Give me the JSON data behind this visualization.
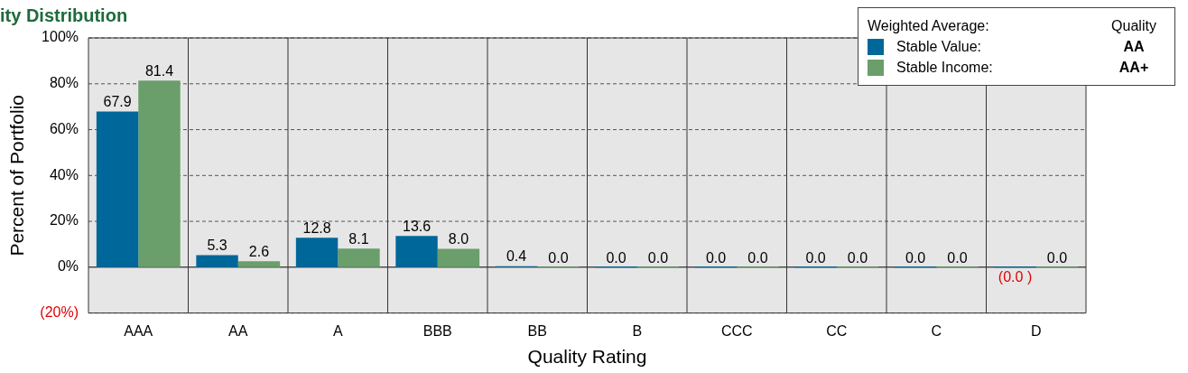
{
  "chart_data": {
    "type": "bar",
    "title": "ity Distribution",
    "xlabel": "Quality Rating",
    "ylabel": "Percent of Portfolio",
    "legend_title": "Weighted Average:",
    "categories": [
      "AAA",
      "AA",
      "A",
      "BBB",
      "BB",
      "B",
      "CCC",
      "CC",
      "C",
      "D"
    ],
    "series": [
      {
        "name": "Stable Value:",
        "color": "#00679a",
        "values": [
          67.9,
          5.3,
          12.8,
          13.6,
          0.4,
          0,
          0,
          0,
          0,
          0
        ],
        "value_labels": [
          "67.9",
          "5.3",
          "12.8",
          "13.6",
          "0.4",
          "0.0",
          "0.0",
          "0.0",
          "0.0",
          "(0.0 )"
        ]
      },
      {
        "name": "Stable Income:",
        "color": "#6a9e6a",
        "values": [
          81.4,
          2.6,
          8.1,
          8.0,
          0,
          0,
          0,
          0,
          0,
          0
        ],
        "value_labels": [
          "81.4",
          "2.6",
          "8.1",
          "8.0",
          "0.0",
          "0.0",
          "0.0",
          "0.0",
          "0.0",
          "0.0"
        ]
      }
    ],
    "ylim": [
      -20,
      100
    ],
    "yticks": [
      {
        "value": -20,
        "label": "(20%)"
      },
      {
        "value": 0,
        "label": "0%"
      },
      {
        "value": 20,
        "label": "20%"
      },
      {
        "value": 40,
        "label": "40%"
      },
      {
        "value": 60,
        "label": "60%"
      },
      {
        "value": 80,
        "label": "80%"
      },
      {
        "value": 100,
        "label": "100%"
      }
    ],
    "grid": true,
    "legend": "top right",
    "annotations": [
      "Quality",
      "AA",
      "AA+"
    ]
  }
}
